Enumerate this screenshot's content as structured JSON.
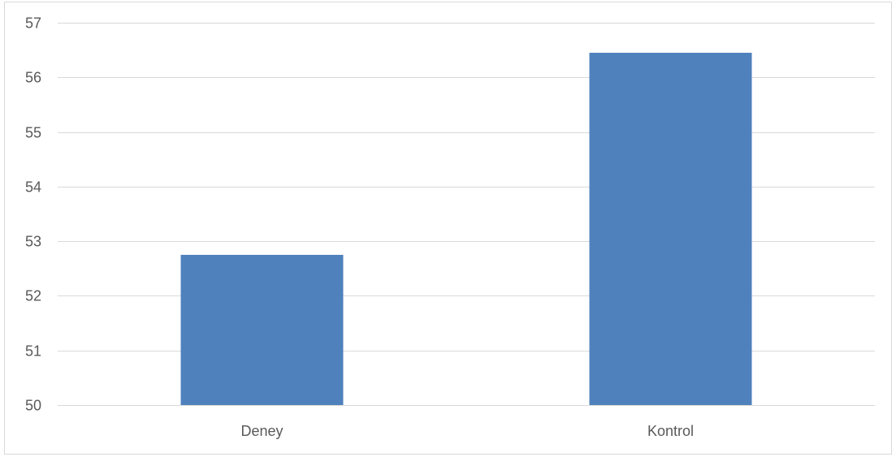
{
  "chart_data": {
    "type": "bar",
    "categories": [
      "Deney",
      "Kontrol"
    ],
    "values": [
      52.75,
      56.45
    ],
    "title": "",
    "xlabel": "",
    "ylabel": "",
    "ylim": [
      50,
      57
    ],
    "yticks": [
      50,
      51,
      52,
      53,
      54,
      55,
      56,
      57
    ],
    "grid": true,
    "legend": "none",
    "colors": {
      "bar": "#4f81bd",
      "grid": "#d9d9d9",
      "text": "#595959",
      "border": "#d9d9d9"
    }
  }
}
